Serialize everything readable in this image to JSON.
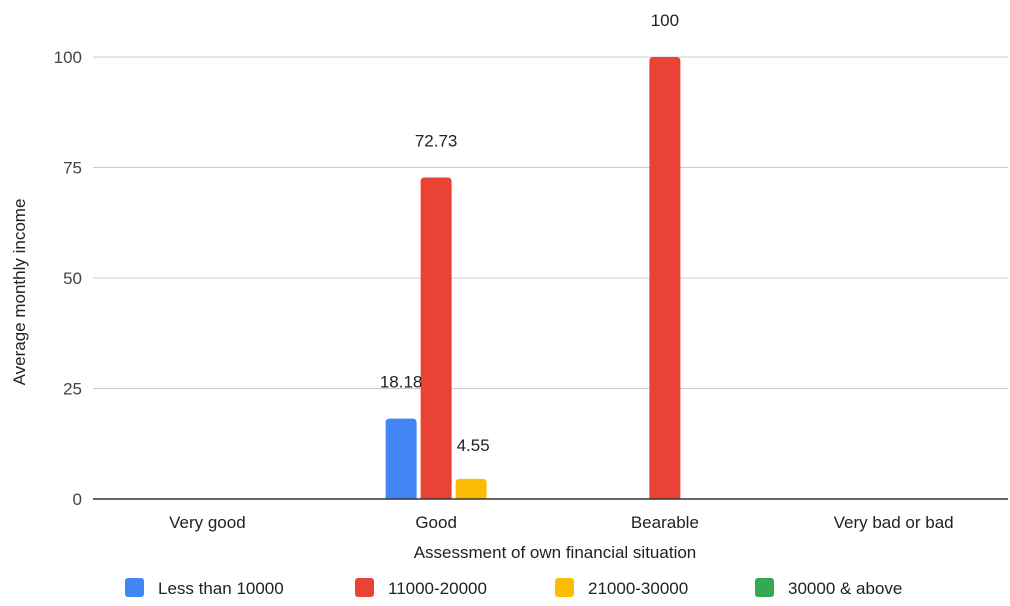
{
  "chart_data": {
    "type": "bar",
    "title": "",
    "xlabel": "Assessment of own financial situation",
    "ylabel": "Average monthly income",
    "ylim": [
      0,
      100
    ],
    "yticks": [
      0,
      25,
      50,
      75,
      100
    ],
    "grid": true,
    "legend_position": "bottom",
    "categories": [
      "Very good",
      "Good",
      "Bearable",
      "Very bad or bad"
    ],
    "series": [
      {
        "name": "Less than 10000",
        "color": "#4285f4",
        "values": [
          0,
          18.18,
          0,
          0
        ],
        "labels": [
          "",
          "18.18",
          "",
          ""
        ]
      },
      {
        "name": "11000-20000",
        "color": "#ea4335",
        "values": [
          0,
          72.73,
          100,
          0
        ],
        "labels": [
          "",
          "72.73",
          "100",
          ""
        ]
      },
      {
        "name": "21000-30000",
        "color": "#fbbc04",
        "values": [
          0,
          4.55,
          0,
          0
        ],
        "labels": [
          "",
          "4.55",
          "",
          ""
        ]
      },
      {
        "name": "30000 & above",
        "color": "#34a853",
        "values": [
          0,
          0,
          0,
          0
        ],
        "labels": [
          "",
          "",
          "",
          ""
        ]
      }
    ]
  }
}
